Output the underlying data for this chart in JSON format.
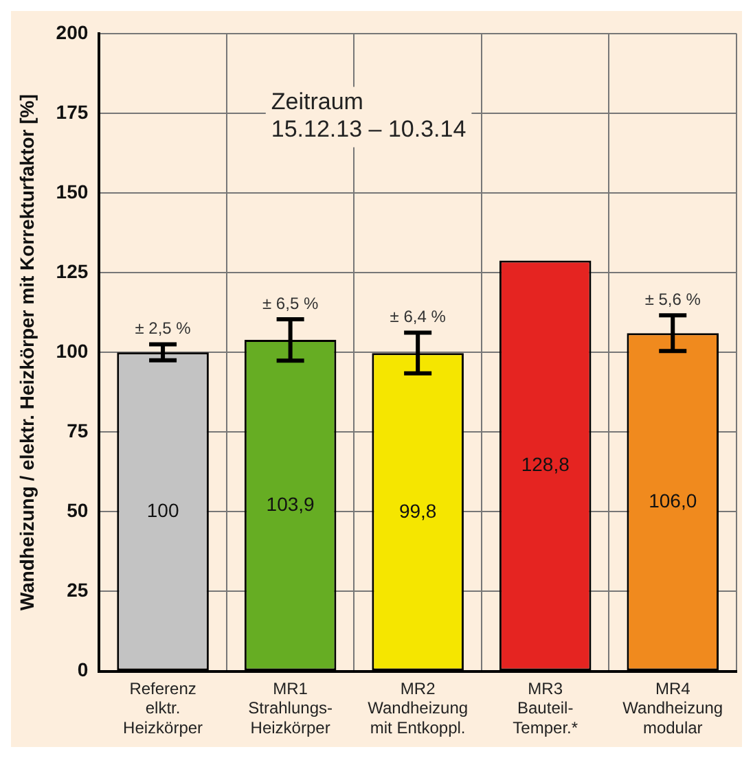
{
  "chart_data": {
    "type": "bar",
    "ylabel": "Wandheizung / elektr. Heizkörper mit Korrekturfaktor [%]",
    "categories": [
      "Referenz\nelktr.\nHeizkörper",
      "MR1\nStrahlungs-\nHeizkörper",
      "MR2\nWandheizung\nmit Entkoppl.",
      "MR3\nBauteil-\nTemper.*",
      "MR4\nWandheizung\nmodular"
    ],
    "values": [
      100,
      103.9,
      99.8,
      128.8,
      106.0
    ],
    "colors": [
      "#c3c3c3",
      "#66ad23",
      "#f5e600",
      "#e52421",
      "#f08a1e"
    ],
    "errors": [
      2.5,
      6.5,
      6.4,
      null,
      5.6
    ],
    "value_labels": [
      "100",
      "103,9",
      "99,8",
      "128,8",
      "106,0"
    ],
    "ylim": [
      0,
      200
    ],
    "yticks": [
      0,
      25,
      50,
      75,
      100,
      125,
      150,
      175,
      200
    ],
    "grid": true,
    "annotations": [
      "Zeitraum\n15.12.13 – 10.3.14",
      {
        "text": "± 2,5 %",
        "x": "Referenz\nelktr.\nHeizkörper",
        "y": 102.5
      },
      {
        "text": "± 6,5 %",
        "x": "MR1\nStrahlungs-\nHeizkörper",
        "y": 110.4
      },
      {
        "text": "± 6,4 %",
        "x": "MR2\nWandheizung\nmit Entkoppl.",
        "y": 106.2
      },
      {
        "text": "± 5,6 %",
        "x": "MR4\nWandheizung\nmodular",
        "y": 111.6
      }
    ]
  }
}
